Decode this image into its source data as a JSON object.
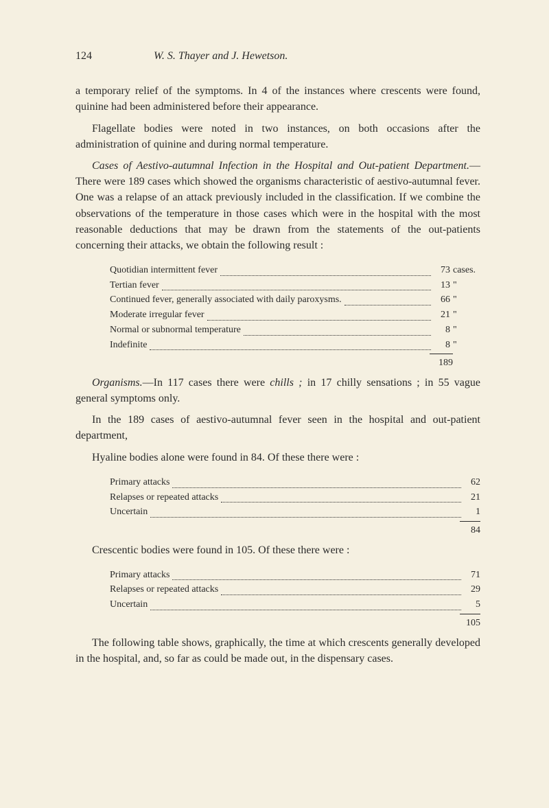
{
  "header": {
    "page_number": "124",
    "running_title": "W. S. Thayer and J. Hewetson."
  },
  "paras": {
    "p1": "a temporary relief of the symptoms. In 4 of the instances where crescents were found, quinine had been administered before their appearance.",
    "p2": "Flagellate bodies were noted in two instances, on both occasions after the administration of quinine and during normal temperature.",
    "p3a": "Cases of Aestivo-autumnal Infection in the Hospital and Out-patient Department.",
    "p3b": "—There were 189 cases which showed the organisms characteristic of aestivo-autumnal fever. One was a relapse of an attack previously included in the classification. If we combine the observations of the temperature in those cases which were in the hospital with the most reasonable deductions that may be drawn from the statements of the out-patients concerning their attacks, we obtain the following result :",
    "p4a": "Organisms.",
    "p4b": "—In 117 cases there were ",
    "p4c": "chills ; ",
    "p4d": "in 17 chilly sensations ; in 55 vague general symptoms only.",
    "p5": "In the 189 cases of aestivo-autumnal fever seen in the hospital and out-patient department,",
    "p6": "Hyaline bodies alone were found in 84. Of these there were :",
    "p7": "Crescentic bodies were found in 105. Of these there were :",
    "p8": "The following table shows, graphically, the time at which crescents generally developed in the hospital, and, so far as could be made out, in the dispensary cases."
  },
  "table1": {
    "rows": [
      {
        "label": "Quotidian intermittent fever",
        "value": "73",
        "unit": "cases."
      },
      {
        "label": "Tertian fever",
        "value": "13",
        "unit": "\""
      },
      {
        "label": "Continued fever, generally associated with daily paroxysms.",
        "value": "66",
        "unit": "\""
      },
      {
        "label": "Moderate irregular fever",
        "value": "21",
        "unit": "\""
      },
      {
        "label": "Normal or subnormal temperature",
        "value": "8",
        "unit": "\""
      },
      {
        "label": "Indefinite",
        "value": "8",
        "unit": "\""
      }
    ],
    "total": "189"
  },
  "table2": {
    "rows": [
      {
        "label": "Primary attacks",
        "value": "62"
      },
      {
        "label": "Relapses or repeated attacks",
        "value": "21"
      },
      {
        "label": "Uncertain",
        "value": "1"
      }
    ],
    "total": "84"
  },
  "table3": {
    "rows": [
      {
        "label": "Primary attacks",
        "value": "71"
      },
      {
        "label": "Relapses or repeated attacks",
        "value": "29"
      },
      {
        "label": "Uncertain",
        "value": "5"
      }
    ],
    "total": "105"
  }
}
